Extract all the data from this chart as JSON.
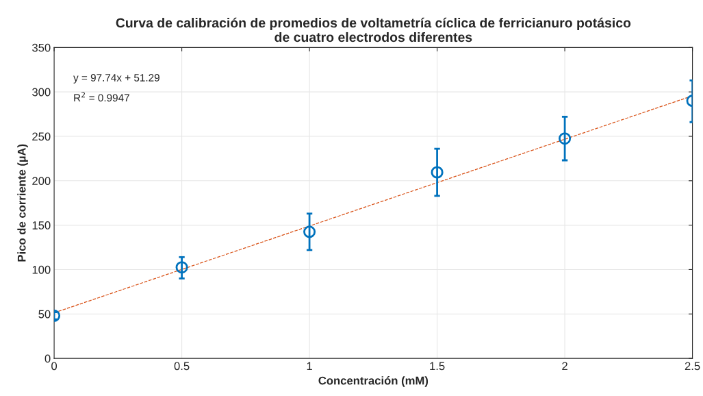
{
  "chart_data": {
    "type": "scatter",
    "title": "Curva de calibración de promedios de voltametría cíclica de ferricianuro potásico\nde cuatro electrodos diferentes",
    "xlabel": "Concentración (mM)",
    "ylabel": "Pico de corriente (µA)",
    "xlim": [
      0,
      2.5
    ],
    "ylim": [
      0,
      350
    ],
    "xticks": [
      0,
      0.5,
      1,
      1.5,
      2,
      2.5
    ],
    "yticks": [
      0,
      50,
      100,
      150,
      200,
      250,
      300,
      350
    ],
    "grid": true,
    "annotations": [
      "y = 97.74x + 51.29",
      "R$^{2}$ = 0.9947"
    ],
    "series": [
      {
        "color": "#0072bd",
        "marker": "circle",
        "x": [
          0,
          0.5,
          1,
          1.5,
          2,
          2.5
        ],
        "values": [
          48,
          102.5,
          142.5,
          209.5,
          247.5,
          290
        ],
        "errors": [
          [
            44,
            52
          ],
          [
            90,
            114
          ],
          [
            122,
            163
          ],
          [
            183,
            236
          ],
          [
            223,
            272
          ],
          [
            266,
            313
          ]
        ]
      },
      {
        "type": "line",
        "color": "#d95319",
        "line_style": "dashed",
        "marker": "none",
        "x": [
          0,
          2.5
        ],
        "values": [
          51.3,
          295.6
        ]
      }
    ]
  }
}
